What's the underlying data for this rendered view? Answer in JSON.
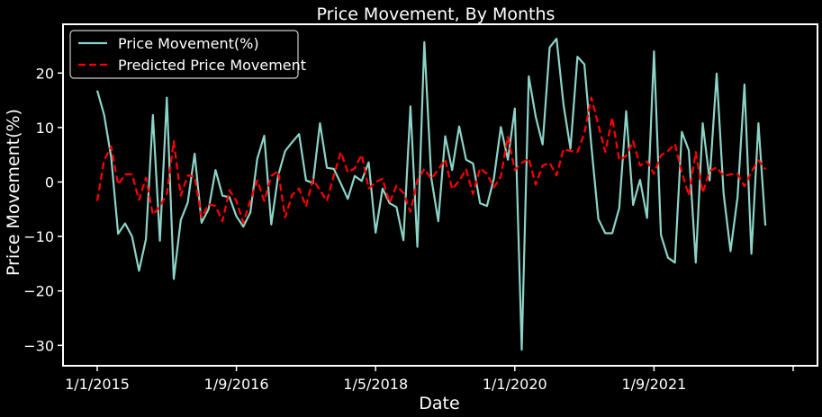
{
  "chart_data": {
    "type": "line",
    "title": "Price Movement, By Months",
    "xlabel": "Date",
    "ylabel": "Price Movement(%)",
    "x_ticks": [
      "1/1/2015",
      "1/9/2016",
      "1/5/2018",
      "1/1/2020",
      "1/9/2021"
    ],
    "y_ticks": [
      -30,
      -20,
      -10,
      0,
      10,
      20
    ],
    "ylim": [
      -34,
      28.5
    ],
    "x_domain": [
      0,
      95
    ],
    "grid": false,
    "legend_position": "top-left",
    "series": [
      {
        "name": "Price Movement(%)",
        "color": "#8dd3c7",
        "style": "solid",
        "values": [
          16.8,
          12.3,
          4.5,
          -9.5,
          -7.6,
          -10.0,
          -16.3,
          -10.5,
          12.3,
          -10.8,
          15.5,
          -17.8,
          -7.0,
          -3.8,
          5.2,
          -7.5,
          -5.0,
          2.2,
          -2.5,
          -2.8,
          -6.3,
          -8.2,
          -5.6,
          4.3,
          8.5,
          -7.8,
          1.2,
          5.7,
          7.3,
          8.8,
          0.3,
          -0.2,
          10.8,
          2.6,
          2.4,
          -0.3,
          -3.1,
          1.1,
          0.2,
          3.6,
          -9.3,
          -1.2,
          -3.9,
          -4.6,
          -10.7,
          13.9,
          -11.9,
          25.7,
          0.8,
          -7.2,
          8.4,
          2.2,
          10.2,
          4.1,
          3.4,
          -3.9,
          -4.4,
          0.7,
          10.1,
          4.1,
          13.5,
          -30.8,
          19.4,
          12.0,
          6.9,
          24.7,
          26.3,
          14.2,
          6.1,
          23.0,
          21.6,
          6.7,
          -6.8,
          -9.4,
          -9.4,
          -4.8,
          13.0,
          -4.2,
          0.4,
          -6.6,
          24.0,
          -9.7,
          -13.9,
          -14.8,
          9.2,
          5.8,
          -14.8,
          10.8,
          0.3,
          19.9,
          -2.1,
          -12.7,
          -2.8,
          17.9,
          -13.2,
          10.8,
          -8.0
        ]
      },
      {
        "name": "Predicted Price Movement",
        "color": "#ff0000",
        "style": "dashed",
        "values": [
          -3.5,
          4.0,
          6.5,
          -0.5,
          1.4,
          1.4,
          -3.3,
          0.8,
          -6.0,
          -4.5,
          -2.2,
          7.5,
          -2.5,
          1.2,
          1.0,
          -6.5,
          -4.1,
          -4.4,
          -7.2,
          -1.5,
          -3.5,
          -7.5,
          -3.3,
          0.3,
          -3.5,
          1.1,
          2.0,
          -6.5,
          -2.4,
          -1.2,
          -4.5,
          0.5,
          -1.5,
          -3.5,
          1.2,
          5.5,
          1.8,
          2.5,
          5.0,
          -1.2,
          0.0,
          0.6,
          -3.8,
          -0.7,
          -2.0,
          -5.5,
          0.3,
          2.4,
          0.6,
          2.3,
          4.1,
          -1.3,
          0.2,
          2.3,
          -2.2,
          2.5,
          1.5,
          -1.0,
          1.0,
          8.3,
          2.2,
          3.5,
          4.3,
          -0.5,
          3.0,
          3.5,
          1.2,
          6.0,
          5.7,
          5.5,
          9.0,
          15.5,
          10.5,
          5.5,
          11.8,
          4.0,
          4.8,
          7.5,
          3.0,
          3.8,
          1.5,
          4.9,
          5.7,
          7.0,
          1.8,
          -2.5,
          5.5,
          -2.0,
          2.0,
          2.7,
          1.1,
          1.4,
          1.5,
          -0.8,
          1.9,
          4.0,
          2.3
        ]
      }
    ]
  }
}
